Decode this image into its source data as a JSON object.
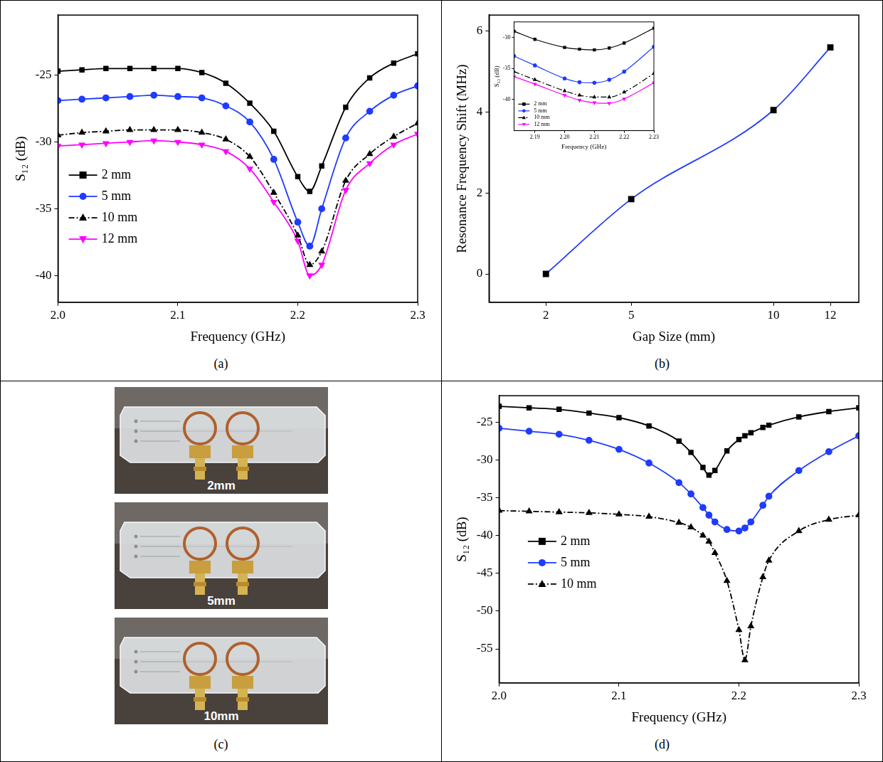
{
  "chart_data": [
    {
      "type": "line",
      "panel_label": "(a)",
      "x_label": "Frequency (GHz)",
      "y_label": "S₁₂ (dB)",
      "x": [
        2,
        2.02,
        2.04,
        2.06,
        2.08,
        2.1,
        2.12,
        2.14,
        2.16,
        2.18,
        2.2,
        2.21,
        2.22,
        2.24,
        2.26,
        2.28,
        2.3
      ],
      "xlim": [
        2,
        2.3
      ],
      "xticks": [
        {
          "value": 2,
          "label": "2.0"
        },
        2.1,
        2.2,
        2.3
      ],
      "ylim": [
        -42,
        -20.5
      ],
      "yticks": [
        -40,
        -35,
        -30,
        -25
      ],
      "grid": false,
      "legend": "left",
      "series": [
        {
          "name": "2 mm",
          "color": "#000000",
          "marker": "square",
          "line_style": "solid",
          "values": [
            -24.7,
            -24.6,
            -24.5,
            -24.5,
            -24.5,
            -24.5,
            -24.8,
            -25.6,
            -27.1,
            -29.2,
            -32.6,
            -33.7,
            -31.8,
            -27.4,
            -25.2,
            -24.1,
            -23.4
          ]
        },
        {
          "name": "5 mm",
          "color": "#1f3bff",
          "marker": "circle",
          "line_style": "solid",
          "values": [
            -26.9,
            -26.8,
            -26.7,
            -26.6,
            -26.5,
            -26.6,
            -26.7,
            -27.3,
            -28.5,
            -31.3,
            -36.0,
            -37.8,
            -35.0,
            -29.7,
            -27.7,
            -26.5,
            -25.8
          ]
        },
        {
          "name": "10 mm",
          "color": "#000000",
          "marker": "triangle",
          "line_style": "dashdot",
          "values": [
            -29.5,
            -29.3,
            -29.2,
            -29.1,
            -29.1,
            -29.1,
            -29.3,
            -29.8,
            -31.1,
            -33.8,
            -37.0,
            -39.2,
            -38.2,
            -32.9,
            -30.9,
            -29.6,
            -28.6
          ]
        },
        {
          "name": "12 mm",
          "color": "#ff00ff",
          "marker": "triangle_down",
          "line_style": "solid",
          "values": [
            -30.3,
            -30.2,
            -30.1,
            -30.0,
            -29.9,
            -30.0,
            -30.2,
            -30.7,
            -32.0,
            -34.5,
            -37.4,
            -40.0,
            -39.2,
            -33.6,
            -31.6,
            -30.2,
            -29.4
          ]
        }
      ]
    },
    {
      "type": "line",
      "panel_label": "(b)",
      "x_label": "Gap Size (mm)",
      "y_label": "Resonance Frequency Shift (MHz)",
      "x": [
        2,
        5,
        10,
        12
      ],
      "values": [
        0,
        1.85,
        4.05,
        5.6
      ],
      "color": "#1f3bff",
      "marker": "square",
      "line_style": "solid",
      "xlim": [
        0,
        13
      ],
      "xticks": [
        2,
        5,
        10,
        12
      ],
      "ylim": [
        -0.7,
        6.4
      ],
      "yticks": [
        0,
        2,
        4,
        6
      ],
      "grid": false,
      "inset": {
        "type": "line",
        "x_label": "Frequency (GHz)",
        "y_label": "S₁₂ (dB)",
        "x": [
          2.183,
          2.19,
          2.2,
          2.205,
          2.21,
          2.215,
          2.22,
          2.23
        ],
        "xlim": [
          2.183,
          2.23
        ],
        "xticks": [
          2.19,
          {
            "value": 2.2,
            "label": "2.20"
          },
          2.21,
          2.22,
          2.23
        ],
        "ylim": [
          -45,
          -27.5
        ],
        "yticks": [
          -40,
          -35,
          -30
        ],
        "grid": false,
        "legend": "bottom_left",
        "series": [
          {
            "name": "2 mm",
            "color": "#000000",
            "marker": "square",
            "line_style": "solid",
            "values": [
              -29.0,
              -30.3,
              -31.6,
              -31.9,
              -32.0,
              -31.7,
              -30.9,
              -28.5
            ]
          },
          {
            "name": "5 mm",
            "color": "#1f3bff",
            "marker": "circle",
            "line_style": "solid",
            "values": [
              -33.0,
              -34.5,
              -36.6,
              -37.2,
              -37.3,
              -36.8,
              -35.5,
              -31.5
            ]
          },
          {
            "name": "10 mm",
            "color": "#000000",
            "marker": "triangle",
            "line_style": "dashdot",
            "values": [
              -35.5,
              -36.8,
              -38.6,
              -39.3,
              -39.6,
              -39.6,
              -38.8,
              -35.8
            ]
          },
          {
            "name": "12 mm",
            "color": "#ff00ff",
            "marker": "triangle_down",
            "line_style": "solid",
            "values": [
              -36.3,
              -37.5,
              -39.3,
              -40.1,
              -40.5,
              -40.6,
              -39.9,
              -37.3
            ]
          }
        ]
      }
    },
    {
      "type": "line",
      "panel_label": "(d)",
      "x_label": "Frequency (GHz)",
      "y_label": "S₁₂ (dB)",
      "x": [
        2,
        2.025,
        2.05,
        2.075,
        2.1,
        2.125,
        2.15,
        2.16,
        2.17,
        2.175,
        2.18,
        2.19,
        2.2,
        2.205,
        2.21,
        2.22,
        2.225,
        2.25,
        2.275,
        2.3
      ],
      "xlim": [
        2,
        2.3
      ],
      "xticks": [
        {
          "value": 2,
          "label": "2.0"
        },
        2.1,
        2.2,
        2.3
      ],
      "ylim": [
        -59.5,
        -21.5
      ],
      "yticks": [
        -55,
        -50,
        -45,
        -40,
        -35,
        -30,
        -25
      ],
      "grid": false,
      "legend": "left",
      "series": [
        {
          "name": "2 mm",
          "color": "#000000",
          "marker": "square",
          "line_style": "solid",
          "values": [
            -22.9,
            -23.1,
            -23.3,
            -23.8,
            -24.4,
            -25.5,
            -27.5,
            -29.0,
            -31.0,
            -32.0,
            -31.4,
            -28.8,
            -27.3,
            -26.8,
            -26.4,
            -25.7,
            -25.4,
            -24.3,
            -23.6,
            -23.1
          ]
        },
        {
          "name": "5 mm",
          "color": "#1f3bff",
          "marker": "circle",
          "line_style": "solid",
          "values": [
            -25.8,
            -26.2,
            -26.6,
            -27.4,
            -28.6,
            -30.4,
            -33.0,
            -34.5,
            -36.3,
            -37.3,
            -38.2,
            -39.2,
            -39.4,
            -39.0,
            -38.2,
            -36.0,
            -34.8,
            -31.4,
            -28.9,
            -26.8
          ]
        },
        {
          "name": "10 mm",
          "color": "#000000",
          "marker": "triangle",
          "line_style": "dashdot",
          "values": [
            -36.7,
            -36.8,
            -36.9,
            -37.0,
            -37.2,
            -37.5,
            -38.3,
            -38.9,
            -40.0,
            -40.8,
            -42.3,
            -46.0,
            -52.5,
            -56.5,
            -52.0,
            -45.5,
            -43.3,
            -39.4,
            -37.9,
            -37.3
          ]
        }
      ]
    }
  ],
  "photo_panel": {
    "panel_label": "(c)",
    "photos": [
      "2mm",
      "5mm",
      "10mm"
    ]
  }
}
